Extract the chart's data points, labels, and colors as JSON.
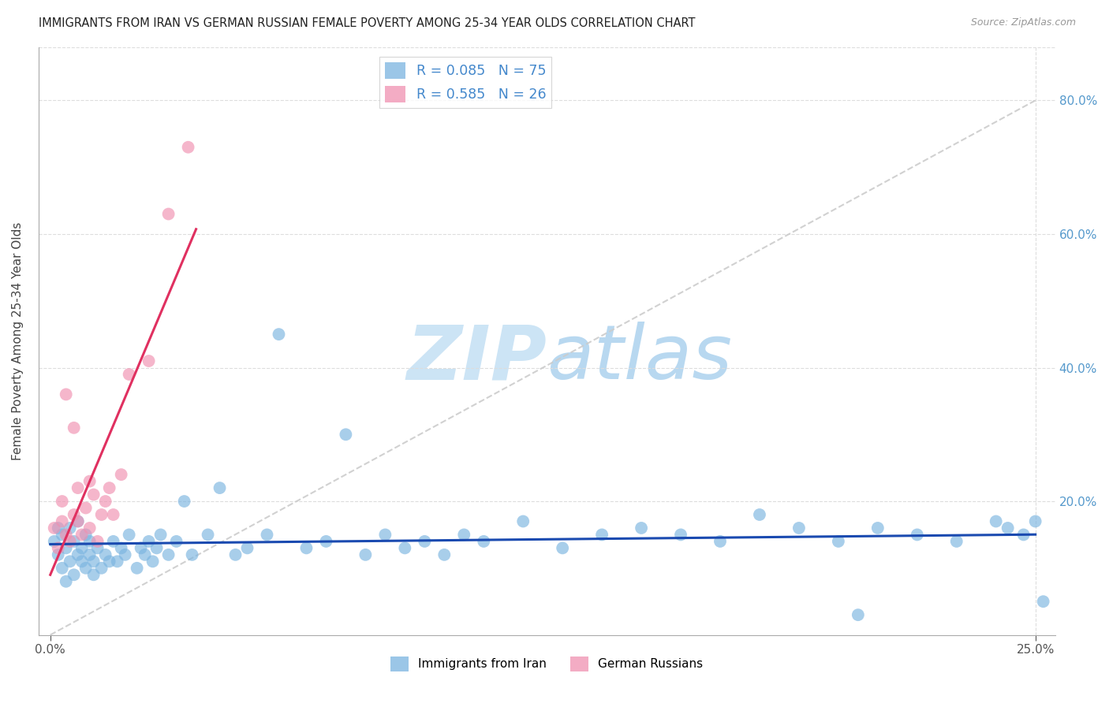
{
  "title": "IMMIGRANTS FROM IRAN VS GERMAN RUSSIAN FEMALE POVERTY AMONG 25-34 YEAR OLDS CORRELATION CHART",
  "source": "Source: ZipAtlas.com",
  "ylabel": "Female Poverty Among 25-34 Year Olds",
  "yaxis_labels": [
    "",
    "20.0%",
    "40.0%",
    "60.0%",
    "80.0%"
  ],
  "yaxis_values": [
    0.0,
    0.2,
    0.4,
    0.6,
    0.8
  ],
  "xlim": [
    0.0,
    0.25
  ],
  "ylim": [
    0.0,
    0.88
  ],
  "iran_R": 0.085,
  "iran_N": 75,
  "german_R": 0.585,
  "german_N": 26,
  "iran_color": "#7ab4e0",
  "german_color": "#f090b0",
  "iran_line_color": "#1a4ab0",
  "german_line_color": "#e03060",
  "diagonal_color": "#cccccc",
  "background_color": "#ffffff",
  "watermark_color": "#cce4f5",
  "iran_scatter_x": [
    0.001,
    0.002,
    0.002,
    0.003,
    0.003,
    0.004,
    0.004,
    0.005,
    0.005,
    0.006,
    0.006,
    0.007,
    0.007,
    0.008,
    0.008,
    0.009,
    0.009,
    0.01,
    0.01,
    0.011,
    0.011,
    0.012,
    0.013,
    0.014,
    0.015,
    0.016,
    0.017,
    0.018,
    0.019,
    0.02,
    0.022,
    0.023,
    0.024,
    0.025,
    0.026,
    0.027,
    0.028,
    0.03,
    0.032,
    0.034,
    0.036,
    0.04,
    0.043,
    0.047,
    0.05,
    0.055,
    0.058,
    0.065,
    0.07,
    0.075,
    0.08,
    0.085,
    0.09,
    0.095,
    0.1,
    0.105,
    0.11,
    0.12,
    0.13,
    0.14,
    0.15,
    0.16,
    0.17,
    0.18,
    0.19,
    0.2,
    0.205,
    0.21,
    0.22,
    0.23,
    0.24,
    0.243,
    0.247,
    0.25,
    0.252
  ],
  "iran_scatter_y": [
    0.14,
    0.12,
    0.16,
    0.1,
    0.15,
    0.08,
    0.13,
    0.16,
    0.11,
    0.14,
    0.09,
    0.17,
    0.12,
    0.11,
    0.13,
    0.15,
    0.1,
    0.12,
    0.14,
    0.09,
    0.11,
    0.13,
    0.1,
    0.12,
    0.11,
    0.14,
    0.11,
    0.13,
    0.12,
    0.15,
    0.1,
    0.13,
    0.12,
    0.14,
    0.11,
    0.13,
    0.15,
    0.12,
    0.14,
    0.2,
    0.12,
    0.15,
    0.22,
    0.12,
    0.13,
    0.15,
    0.45,
    0.13,
    0.14,
    0.3,
    0.12,
    0.15,
    0.13,
    0.14,
    0.12,
    0.15,
    0.14,
    0.17,
    0.13,
    0.15,
    0.16,
    0.15,
    0.14,
    0.18,
    0.16,
    0.14,
    0.03,
    0.16,
    0.15,
    0.14,
    0.17,
    0.16,
    0.15,
    0.17,
    0.05
  ],
  "german_scatter_x": [
    0.001,
    0.002,
    0.003,
    0.003,
    0.004,
    0.004,
    0.005,
    0.006,
    0.006,
    0.007,
    0.007,
    0.008,
    0.009,
    0.01,
    0.01,
    0.011,
    0.012,
    0.013,
    0.014,
    0.015,
    0.016,
    0.018,
    0.02,
    0.025,
    0.03,
    0.035
  ],
  "german_scatter_y": [
    0.16,
    0.13,
    0.17,
    0.2,
    0.36,
    0.15,
    0.14,
    0.18,
    0.31,
    0.17,
    0.22,
    0.15,
    0.19,
    0.16,
    0.23,
    0.21,
    0.14,
    0.18,
    0.2,
    0.22,
    0.18,
    0.24,
    0.39,
    0.41,
    0.63,
    0.73
  ]
}
